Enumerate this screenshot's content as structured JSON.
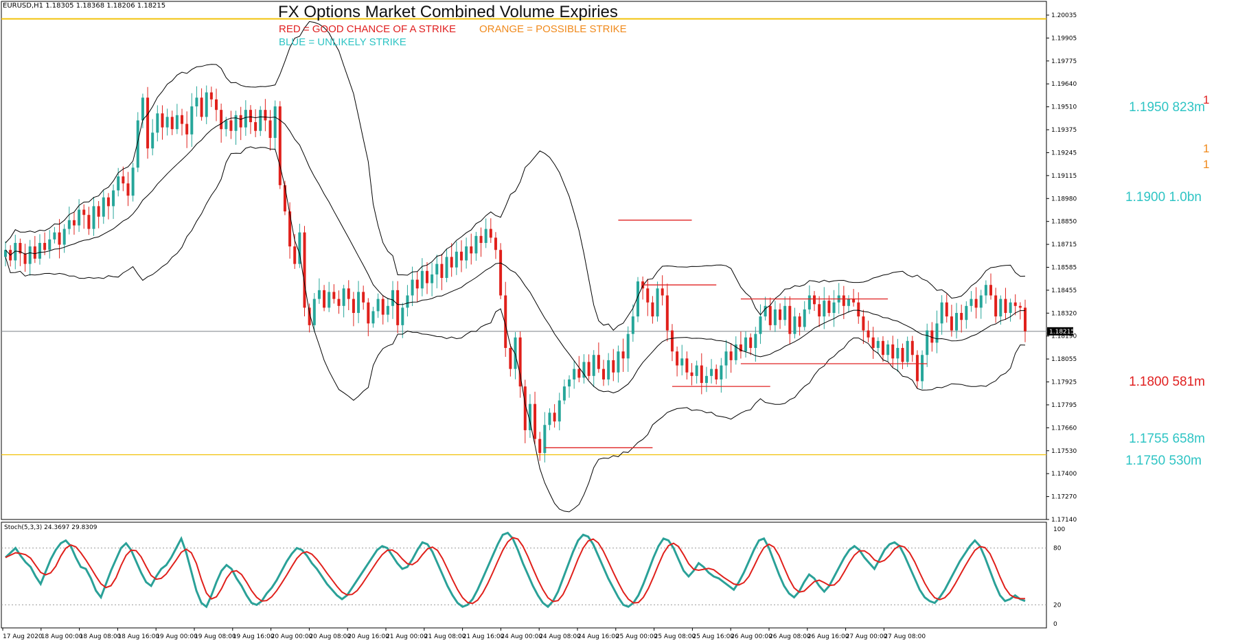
{
  "header": {
    "symbol_line": "EURUSD,H1  1.18305 1.18368 1.18206 1.18215",
    "title": "FX Options Market Combined Volume Expiries",
    "legend_red": "RED = GOOD CHANCE OF A STRIKE",
    "legend_orange": "ORANGE = POSSIBLE STRIKE",
    "legend_blue": "BLUE = UNLIKELY STRIKE"
  },
  "colors": {
    "bull": "#26A69A",
    "bear": "#E0201B",
    "blue_strike": "#2EC4C4",
    "red_strike": "#E02020",
    "orange_strike": "#F08A1C",
    "gold_line": "#F2C20A",
    "stoch_main": "#2AA198",
    "stoch_signal": "#E0201B"
  },
  "current_price": "1.18215",
  "edge_marks": {
    "red": "1",
    "orange_1": "1",
    "orange_2": "1"
  },
  "strikes": [
    {
      "label": "1.1950 823m",
      "level": 1.195,
      "color": "blue"
    },
    {
      "label": "1.1900 1.0bn",
      "level": 1.19,
      "color": "blue"
    },
    {
      "label": "1.1800 581m",
      "level": 1.18,
      "color": "red"
    },
    {
      "label": "1.1755 658m",
      "level": 1.1755,
      "color": "blue"
    },
    {
      "label": "1.1750 530m",
      "level": 1.175,
      "color": "blue"
    }
  ],
  "stoch_label": "Stoch(5,3,3) 24.3697 29.8309",
  "chart_data": {
    "type": "candlestick",
    "price_axis": {
      "ticks": [
        "1.20035",
        "1.19905",
        "1.19775",
        "1.19640",
        "1.19510",
        "1.19375",
        "1.19245",
        "1.19115",
        "1.18980",
        "1.18850",
        "1.18715",
        "1.18585",
        "1.18455",
        "1.18320",
        "1.18190",
        "1.18055",
        "1.17925",
        "1.17795",
        "1.17660",
        "1.17530",
        "1.17400",
        "1.17270",
        "1.17140"
      ],
      "range": [
        1.1714,
        1.201
      ]
    },
    "time_axis": {
      "ticks": [
        "17 Aug 2020",
        "18 Aug 00:00",
        "18 Aug 08:00",
        "18 Aug 16:00",
        "19 Aug 00:00",
        "19 Aug 08:00",
        "19 Aug 16:00",
        "20 Aug 00:00",
        "20 Aug 08:00",
        "20 Aug 16:00",
        "21 Aug 00:00",
        "21 Aug 08:00",
        "21 Aug 16:00",
        "24 Aug 00:00",
        "24 Aug 08:00",
        "24 Aug 16:00",
        "25 Aug 00:00",
        "25 Aug 08:00",
        "25 Aug 16:00",
        "26 Aug 00:00",
        "26 Aug 08:00",
        "26 Aug 16:00",
        "27 Aug 00:00",
        "27 Aug 08:00"
      ]
    },
    "horizontal_lines": [
      {
        "level": 1.2,
        "color": "gold"
      },
      {
        "level": 1.1751,
        "color": "gold"
      },
      {
        "level": 1.18215,
        "color": "gray"
      }
    ],
    "closes": [
      1.1868,
      1.1862,
      1.1872,
      1.1866,
      1.186,
      1.187,
      1.1863,
      1.1872,
      1.1868,
      1.1874,
      1.1878,
      1.1871,
      1.188,
      1.1885,
      1.1882,
      1.1891,
      1.1888,
      1.188,
      1.1893,
      1.1887,
      1.1898,
      1.1893,
      1.1902,
      1.191,
      1.1906,
      1.1899,
      1.1915,
      1.1942,
      1.1955,
      1.1926,
      1.1935,
      1.1946,
      1.1938,
      1.1944,
      1.1937,
      1.1945,
      1.194,
      1.1934,
      1.195,
      1.1955,
      1.1944,
      1.1958,
      1.1954,
      1.1948,
      1.1937,
      1.1942,
      1.1936,
      1.1945,
      1.1938,
      1.1948,
      1.1941,
      1.1936,
      1.1948,
      1.1942,
      1.1932,
      1.195,
      1.1905,
      1.189,
      1.187,
      1.186,
      1.1878,
      1.1835,
      1.1825,
      1.184,
      1.1845,
      1.1835,
      1.1844,
      1.184,
      1.1836,
      1.1846,
      1.184,
      1.1832,
      1.1844,
      1.1838,
      1.1826,
      1.1833,
      1.184,
      1.1831,
      1.1836,
      1.1845,
      1.1825,
      1.1835,
      1.1842,
      1.1851,
      1.1846,
      1.1856,
      1.1849,
      1.1854,
      1.186,
      1.1852,
      1.1864,
      1.1858,
      1.1867,
      1.1862,
      1.187,
      1.1866,
      1.1876,
      1.1872,
      1.188,
      1.1875,
      1.1868,
      1.1842,
      1.1812,
      1.18,
      1.1818,
      1.179,
      1.1765,
      1.178,
      1.176,
      1.1752,
      1.1768,
      1.1775,
      1.177,
      1.1782,
      1.179,
      1.1794,
      1.18,
      1.1795,
      1.1804,
      1.1796,
      1.1808,
      1.18,
      1.1794,
      1.1805,
      1.1798,
      1.181,
      1.1806,
      1.182,
      1.183,
      1.185,
      1.1846,
      1.1838,
      1.183,
      1.1846,
      1.1842,
      1.1822,
      1.181,
      1.1802,
      1.1806,
      1.1798,
      1.1796,
      1.1802,
      1.1792,
      1.1796,
      1.18,
      1.1794,
      1.1802,
      1.181,
      1.1805,
      1.1814,
      1.181,
      1.1818,
      1.1812,
      1.182,
      1.183,
      1.1836,
      1.1825,
      1.1834,
      1.1828,
      1.1836,
      1.182,
      1.183,
      1.1824,
      1.1834,
      1.1842,
      1.1837,
      1.183,
      1.1839,
      1.1832,
      1.1838,
      1.1842,
      1.1836,
      1.184,
      1.1838,
      1.183,
      1.1822,
      1.1818,
      1.1812,
      1.1816,
      1.1808,
      1.1814,
      1.1806,
      1.1812,
      1.1804,
      1.1816,
      1.1808,
      1.1793,
      1.1808,
      1.1822,
      1.1815,
      1.1826,
      1.1838,
      1.183,
      1.1822,
      1.1832,
      1.1828,
      1.1836,
      1.184,
      1.1835,
      1.1842,
      1.1848,
      1.1842,
      1.183,
      1.184,
      1.1832,
      1.1838,
      1.1836,
      1.1835,
      1.18215
    ],
    "stochastic": {
      "levels": [
        20,
        80
      ],
      "ticks": [
        "100",
        "80",
        "20",
        "0"
      ],
      "main": [
        70,
        75,
        80,
        72,
        65,
        60,
        50,
        42,
        55,
        68,
        78,
        85,
        88,
        82,
        70,
        60,
        58,
        48,
        35,
        28,
        42,
        56,
        68,
        80,
        85,
        78,
        66,
        54,
        44,
        40,
        50,
        58,
        62,
        70,
        80,
        90,
        75,
        55,
        35,
        22,
        18,
        30,
        44,
        56,
        62,
        58,
        48,
        40,
        30,
        22,
        20,
        24,
        32,
        38,
        46,
        56,
        66,
        74,
        80,
        78,
        72,
        64,
        58,
        50,
        42,
        36,
        30,
        26,
        30,
        38,
        46,
        54,
        62,
        70,
        78,
        82,
        80,
        72,
        64,
        58,
        60,
        68,
        78,
        86,
        84,
        76,
        64,
        52,
        40,
        30,
        22,
        18,
        20,
        26,
        36,
        48,
        60,
        72,
        84,
        94,
        96,
        90,
        78,
        64,
        52,
        40,
        30,
        22,
        18,
        24,
        34,
        48,
        62,
        76,
        88,
        94,
        92,
        84,
        72,
        60,
        48,
        38,
        28,
        20,
        18,
        22,
        30,
        42,
        56,
        70,
        82,
        90,
        88,
        80,
        68,
        56,
        50,
        56,
        64,
        60,
        54,
        50,
        48,
        44,
        40,
        36,
        44,
        54,
        66,
        78,
        88,
        90,
        80,
        66,
        52,
        40,
        32,
        28,
        34,
        44,
        52,
        48,
        40,
        34,
        40,
        50,
        60,
        70,
        78,
        82,
        78,
        70,
        64,
        58,
        68,
        78,
        84,
        86,
        82,
        72,
        60,
        48,
        36,
        28,
        24,
        22,
        28,
        36,
        46,
        56,
        66,
        74,
        82,
        88,
        82,
        70,
        56,
        42,
        30,
        24,
        26,
        30,
        26,
        24
      ]
    }
  }
}
